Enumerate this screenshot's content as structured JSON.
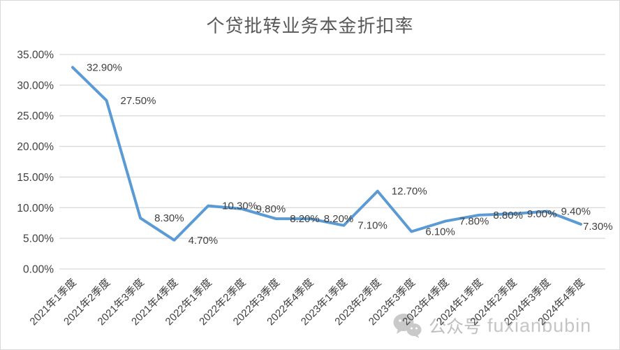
{
  "chart_data": {
    "type": "line",
    "title": "个贷批转业务本金折扣率",
    "categories": [
      "2021年1季度",
      "2021年2季度",
      "2021年3季度",
      "2021年4季度",
      "2022年1季度",
      "2022年2季度",
      "2022年3季度",
      "2022年4季度",
      "2023年1季度",
      "2023年2季度",
      "2023年3季度",
      "2023年4季度",
      "2024年1季度",
      "2024年2季度",
      "2024年3季度",
      "2024年4季度"
    ],
    "values": [
      32.9,
      27.5,
      8.3,
      4.7,
      10.3,
      9.8,
      8.2,
      8.2,
      7.1,
      12.7,
      6.1,
      7.8,
      8.8,
      9.0,
      9.4,
      7.3
    ],
    "data_labels": [
      "32.90%",
      "27.50%",
      "8.30%",
      "4.70%",
      "10.30%",
      "9.80%",
      "8.20%",
      "8.20%",
      "7.10%",
      "12.70%",
      "6.10%",
      "7.80%",
      "8.80%",
      "9.00%",
      "9.40%",
      "7.30%"
    ],
    "y_ticks": [
      "0.00%",
      "5.00%",
      "10.00%",
      "15.00%",
      "20.00%",
      "25.00%",
      "30.00%",
      "35.00%"
    ],
    "ylim": [
      0,
      35
    ],
    "y_tick_step": 5,
    "xlabel": "",
    "ylabel": "",
    "grid": true,
    "legend": "none",
    "colors": {
      "line": "#5B9BD5",
      "gridline": "#D9D9D9",
      "tick_text": "#404040",
      "data_label_text": "#404040",
      "title_text": "#595959",
      "frame_border": "#D9D9D9"
    }
  },
  "watermark": {
    "icon": "wechat-icon",
    "badge": "公众号",
    "handle": "fuxianbubin"
  }
}
